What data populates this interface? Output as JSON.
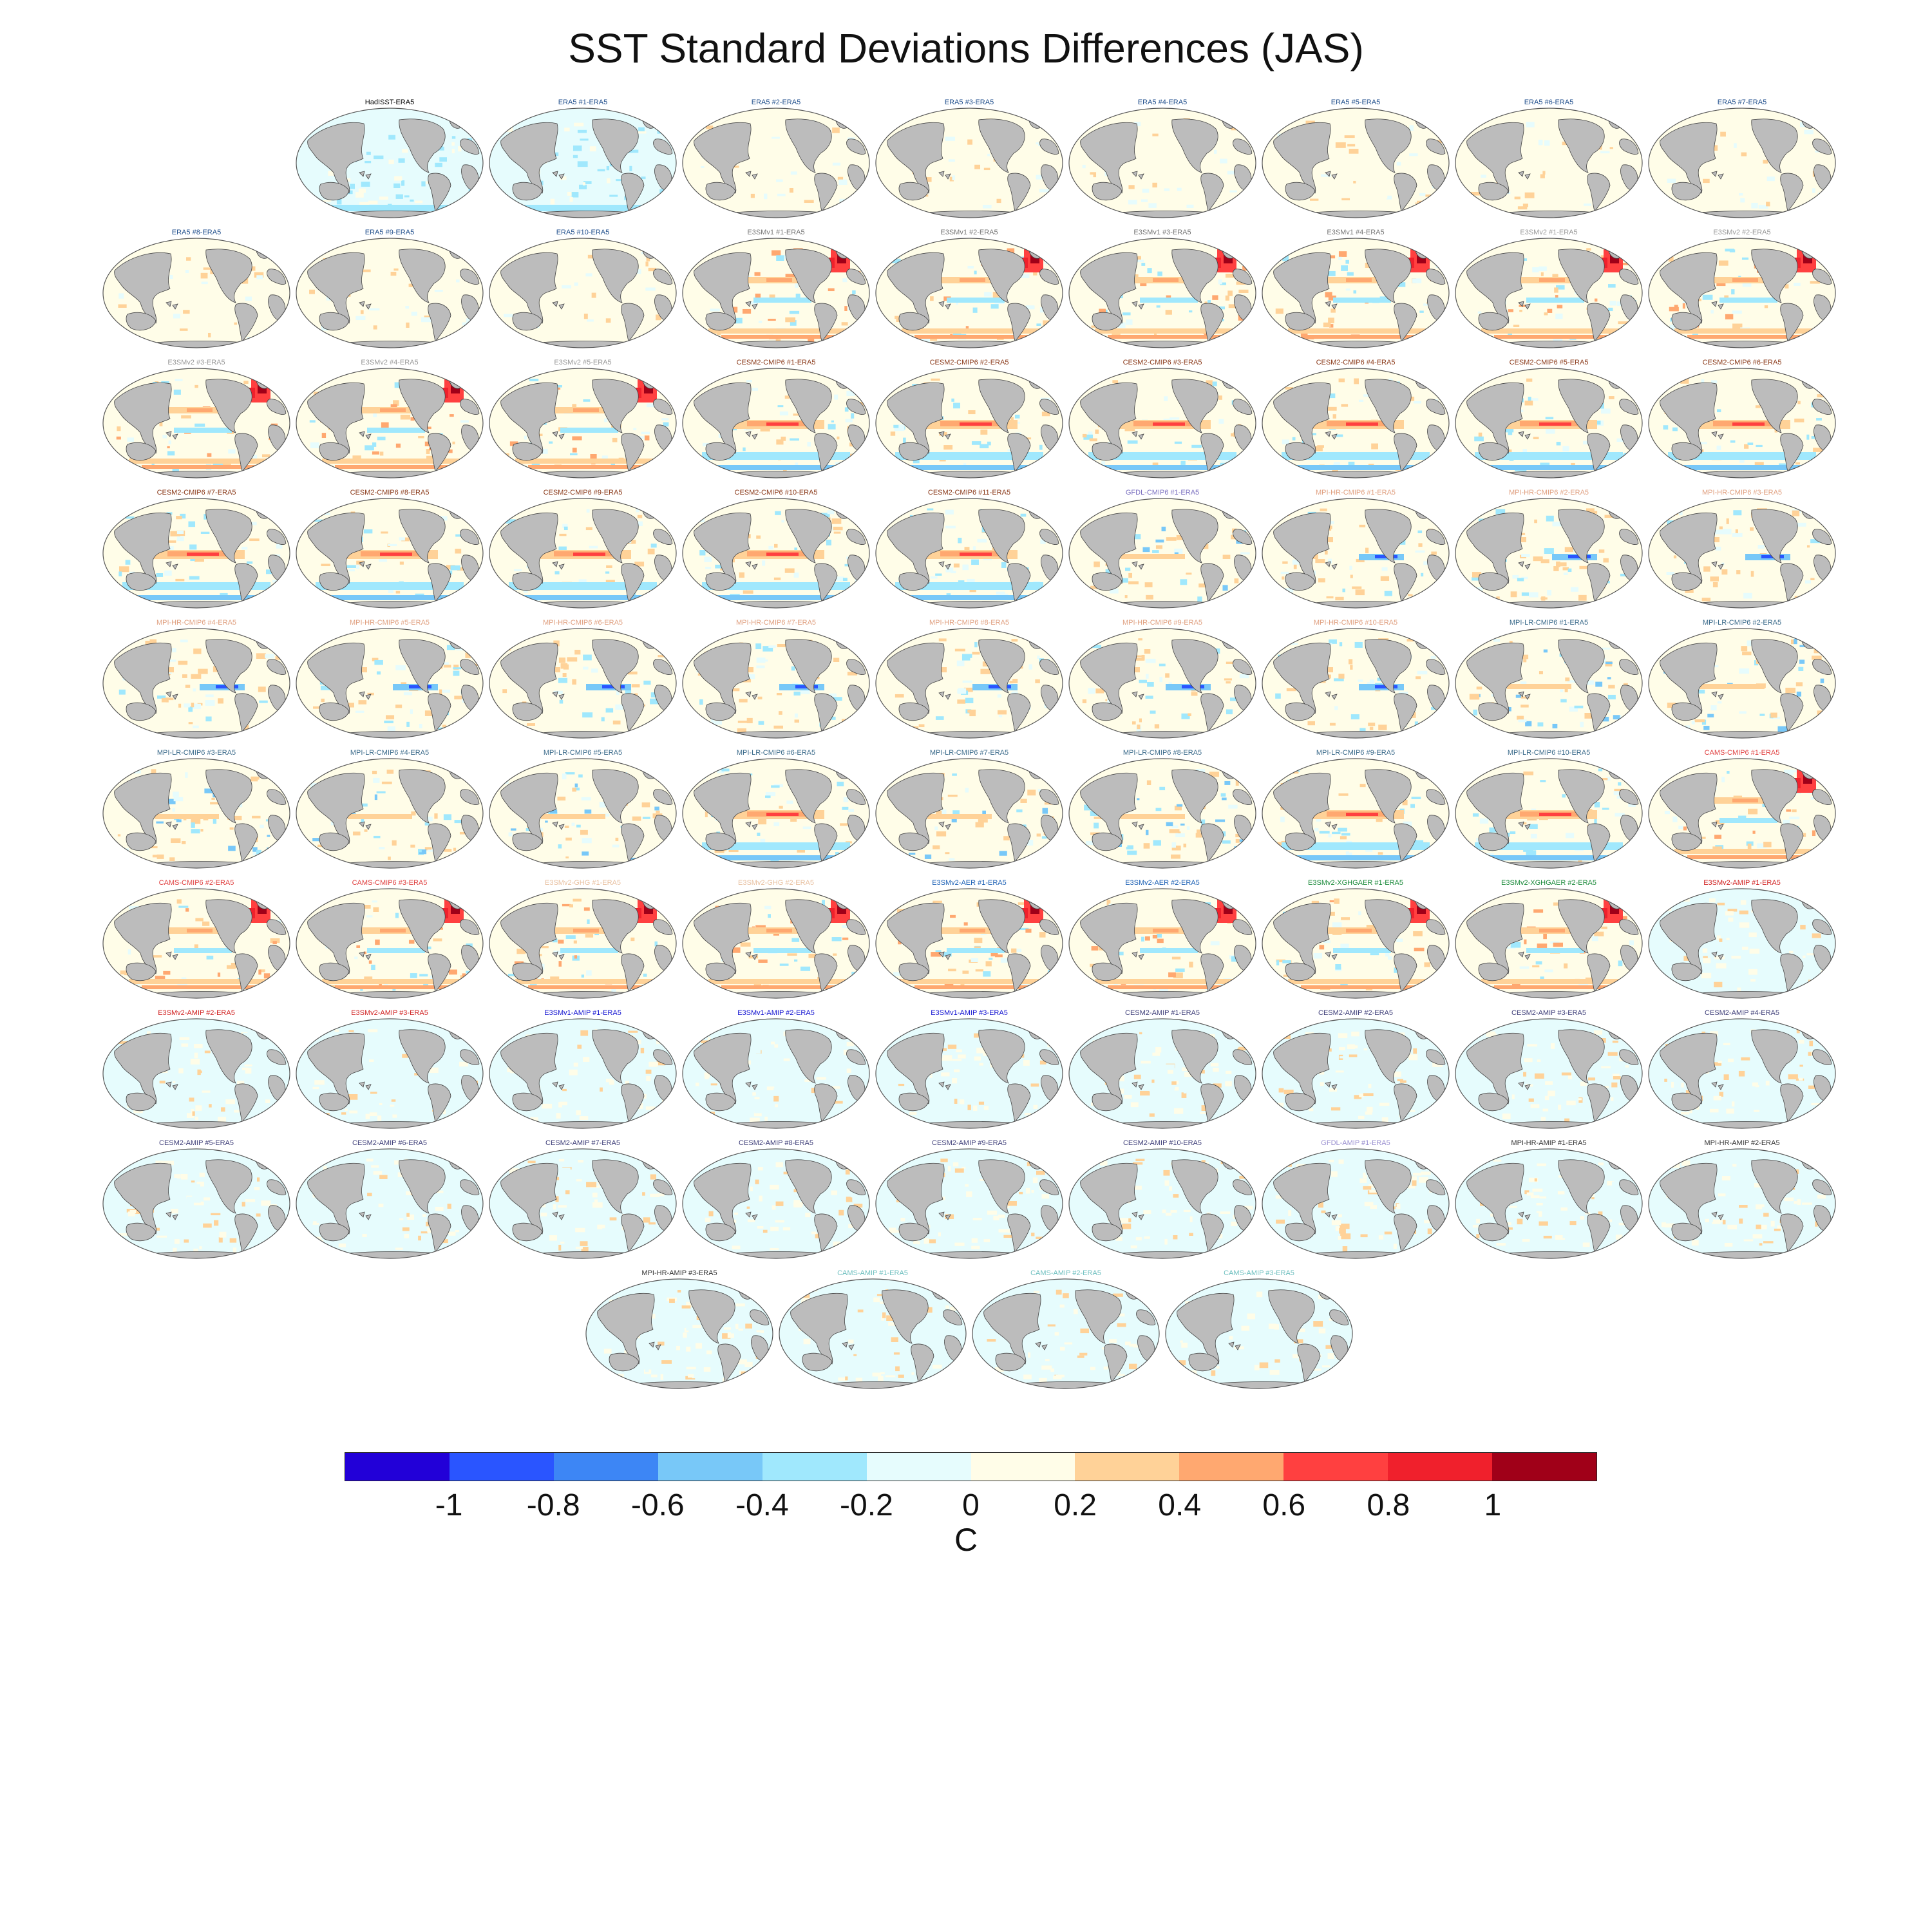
{
  "title": "SST Standard Deviations Differences (JAS)",
  "panel_rows": [
    [
      {
        "label": "HadISST-ERA5",
        "color": "#000000",
        "pattern": "obs"
      },
      {
        "label": "ERA5   #1-ERA5",
        "color": "#1f4e8c",
        "pattern": "obs"
      },
      {
        "label": "ERA5   #2-ERA5",
        "color": "#1f4e8c",
        "pattern": "near"
      },
      {
        "label": "ERA5   #3-ERA5",
        "color": "#1f4e8c",
        "pattern": "near"
      },
      {
        "label": "ERA5   #4-ERA5",
        "color": "#1f4e8c",
        "pattern": "near"
      },
      {
        "label": "ERA5   #5-ERA5",
        "color": "#1f4e8c",
        "pattern": "near"
      },
      {
        "label": "ERA5   #6-ERA5",
        "color": "#1f4e8c",
        "pattern": "near"
      },
      {
        "label": "ERA5   #7-ERA5",
        "color": "#1f4e8c",
        "pattern": "near"
      }
    ],
    [
      {
        "label": "ERA5   #8-ERA5",
        "color": "#1f4e8c",
        "pattern": "near"
      },
      {
        "label": "ERA5   #9-ERA5",
        "color": "#1f4e8c",
        "pattern": "near"
      },
      {
        "label": "ERA5   #10-ERA5",
        "color": "#1f4e8c",
        "pattern": "near"
      },
      {
        "label": "E3SMv1 #1-ERA5",
        "color": "#777777",
        "pattern": "e3sm"
      },
      {
        "label": "E3SMv1 #2-ERA5",
        "color": "#777777",
        "pattern": "e3sm"
      },
      {
        "label": "E3SMv1 #3-ERA5",
        "color": "#777777",
        "pattern": "e3sm"
      },
      {
        "label": "E3SMv1 #4-ERA5",
        "color": "#777777",
        "pattern": "e3sm"
      },
      {
        "label": "E3SMv2 #1-ERA5",
        "color": "#999999",
        "pattern": "e3sm"
      },
      {
        "label": "E3SMv2 #2-ERA5",
        "color": "#999999",
        "pattern": "e3sm"
      }
    ],
    [
      {
        "label": "E3SMv2 #3-ERA5",
        "color": "#999999",
        "pattern": "e3sm"
      },
      {
        "label": "E3SMv2 #4-ERA5",
        "color": "#999999",
        "pattern": "e3sm"
      },
      {
        "label": "E3SMv2 #5-ERA5",
        "color": "#999999",
        "pattern": "e3sm"
      },
      {
        "label": "CESM2-CMIP6 #1-ERA5",
        "color": "#8b3a1a",
        "pattern": "cesm"
      },
      {
        "label": "CESM2-CMIP6 #2-ERA5",
        "color": "#8b3a1a",
        "pattern": "cesm"
      },
      {
        "label": "CESM2-CMIP6 #3-ERA5",
        "color": "#8b3a1a",
        "pattern": "cesm"
      },
      {
        "label": "CESM2-CMIP6 #4-ERA5",
        "color": "#8b3a1a",
        "pattern": "cesm"
      },
      {
        "label": "CESM2-CMIP6 #5-ERA5",
        "color": "#8b3a1a",
        "pattern": "cesm"
      },
      {
        "label": "CESM2-CMIP6 #6-ERA5",
        "color": "#8b3a1a",
        "pattern": "cesm"
      }
    ],
    [
      {
        "label": "CESM2-CMIP6 #7-ERA5",
        "color": "#8b3a1a",
        "pattern": "cesm"
      },
      {
        "label": "CESM2-CMIP6 #8-ERA5",
        "color": "#8b3a1a",
        "pattern": "cesm"
      },
      {
        "label": "CESM2-CMIP6 #9-ERA5",
        "color": "#8b3a1a",
        "pattern": "cesm"
      },
      {
        "label": "CESM2-CMIP6 #10-ERA5",
        "color": "#8b3a1a",
        "pattern": "cesm"
      },
      {
        "label": "CESM2-CMIP6 #11-ERA5",
        "color": "#8b3a1a",
        "pattern": "cesm"
      },
      {
        "label": "GFDL-CMIP6 #1-ERA5",
        "color": "#7a6fc0",
        "pattern": "mix"
      },
      {
        "label": "MPI-HR-CMIP6 #1-ERA5",
        "color": "#e0a080",
        "pattern": "mpi"
      },
      {
        "label": "MPI-HR-CMIP6 #2-ERA5",
        "color": "#e0a080",
        "pattern": "mpi"
      },
      {
        "label": "MPI-HR-CMIP6 #3-ERA5",
        "color": "#e0a080",
        "pattern": "mpi"
      }
    ],
    [
      {
        "label": "MPI-HR-CMIP6 #4-ERA5",
        "color": "#e0a080",
        "pattern": "mpi"
      },
      {
        "label": "MPI-HR-CMIP6 #5-ERA5",
        "color": "#e0a080",
        "pattern": "mpi"
      },
      {
        "label": "MPI-HR-CMIP6 #6-ERA5",
        "color": "#e0a080",
        "pattern": "mpi"
      },
      {
        "label": "MPI-HR-CMIP6 #7-ERA5",
        "color": "#e0a080",
        "pattern": "mpi"
      },
      {
        "label": "MPI-HR-CMIP6 #8-ERA5",
        "color": "#e0a080",
        "pattern": "mpi"
      },
      {
        "label": "MPI-HR-CMIP6 #9-ERA5",
        "color": "#e0a080",
        "pattern": "mpi"
      },
      {
        "label": "MPI-HR-CMIP6 #10-ERA5",
        "color": "#e0a080",
        "pattern": "mpi"
      },
      {
        "label": "MPI-LR-CMIP6 #1-ERA5",
        "color": "#3a6a8a",
        "pattern": "mix"
      },
      {
        "label": "MPI-LR-CMIP6 #2-ERA5",
        "color": "#3a6a8a",
        "pattern": "mix"
      }
    ],
    [
      {
        "label": "MPI-LR-CMIP6 #3-ERA5",
        "color": "#3a6a8a",
        "pattern": "mix"
      },
      {
        "label": "MPI-LR-CMIP6 #4-ERA5",
        "color": "#3a6a8a",
        "pattern": "mix"
      },
      {
        "label": "MPI-LR-CMIP6 #5-ERA5",
        "color": "#3a6a8a",
        "pattern": "mix"
      },
      {
        "label": "MPI-LR-CMIP6 #6-ERA5",
        "color": "#3a6a8a",
        "pattern": "cesm"
      },
      {
        "label": "MPI-LR-CMIP6 #7-ERA5",
        "color": "#3a6a8a",
        "pattern": "mix"
      },
      {
        "label": "MPI-LR-CMIP6 #8-ERA5",
        "color": "#3a6a8a",
        "pattern": "mix"
      },
      {
        "label": "MPI-LR-CMIP6 #9-ERA5",
        "color": "#3a6a8a",
        "pattern": "cesm"
      },
      {
        "label": "MPI-LR-CMIP6 #10-ERA5",
        "color": "#3a6a8a",
        "pattern": "cesm"
      },
      {
        "label": "CAMS-CMIP6 #1-ERA5",
        "color": "#e04040",
        "pattern": "e3sm"
      }
    ],
    [
      {
        "label": "CAMS-CMIP6 #2-ERA5",
        "color": "#e04040",
        "pattern": "e3sm"
      },
      {
        "label": "CAMS-CMIP6 #3-ERA5",
        "color": "#e04040",
        "pattern": "e3sm"
      },
      {
        "label": "E3SMv2-GHG #1-ERA5",
        "color": "#e8c0a0",
        "pattern": "e3sm"
      },
      {
        "label": "E3SMv2-GHG #2-ERA5",
        "color": "#e8c0a0",
        "pattern": "e3sm"
      },
      {
        "label": "E3SMv2-AER #1-ERA5",
        "color": "#1a5fb4",
        "pattern": "e3sm"
      },
      {
        "label": "E3SMv2-AER #2-ERA5",
        "color": "#1a5fb4",
        "pattern": "e3sm"
      },
      {
        "label": "E3SMv2-XGHGAER #1-ERA5",
        "color": "#1a8a3a",
        "pattern": "e3sm"
      },
      {
        "label": "E3SMv2-XGHGAER #2-ERA5",
        "color": "#1a8a3a",
        "pattern": "e3sm"
      },
      {
        "label": "E3SMv2-AMIP #1-ERA5",
        "color": "#d02020",
        "pattern": "amip"
      }
    ],
    [
      {
        "label": "E3SMv2-AMIP #2-ERA5",
        "color": "#d02020",
        "pattern": "amip"
      },
      {
        "label": "E3SMv2-AMIP #3-ERA5",
        "color": "#d02020",
        "pattern": "amip"
      },
      {
        "label": "E3SMv1-AMIP #1-ERA5",
        "color": "#1010d0",
        "pattern": "amip"
      },
      {
        "label": "E3SMv1-AMIP #2-ERA5",
        "color": "#1010d0",
        "pattern": "amip"
      },
      {
        "label": "E3SMv1-AMIP #3-ERA5",
        "color": "#1010d0",
        "pattern": "amip"
      },
      {
        "label": "CESM2-AMIP #1-ERA5",
        "color": "#40407a",
        "pattern": "amip"
      },
      {
        "label": "CESM2-AMIP #2-ERA5",
        "color": "#40407a",
        "pattern": "amip"
      },
      {
        "label": "CESM2-AMIP #3-ERA5",
        "color": "#40407a",
        "pattern": "amip"
      },
      {
        "label": "CESM2-AMIP #4-ERA5",
        "color": "#40407a",
        "pattern": "amip"
      }
    ],
    [
      {
        "label": "CESM2-AMIP #5-ERA5",
        "color": "#40407a",
        "pattern": "amip"
      },
      {
        "label": "CESM2-AMIP #6-ERA5",
        "color": "#40407a",
        "pattern": "amip"
      },
      {
        "label": "CESM2-AMIP #7-ERA5",
        "color": "#40407a",
        "pattern": "amip"
      },
      {
        "label": "CESM2-AMIP #8-ERA5",
        "color": "#40407a",
        "pattern": "amip"
      },
      {
        "label": "CESM2-AMIP #9-ERA5",
        "color": "#40407a",
        "pattern": "amip"
      },
      {
        "label": "CESM2-AMIP #10-ERA5",
        "color": "#40407a",
        "pattern": "amip"
      },
      {
        "label": "GFDL-AMIP #1-ERA5",
        "color": "#9a90d0",
        "pattern": "amip"
      },
      {
        "label": "MPI-HR-AMIP #1-ERA5",
        "color": "#333333",
        "pattern": "amip"
      },
      {
        "label": "MPI-HR-AMIP #2-ERA5",
        "color": "#333333",
        "pattern": "amip"
      }
    ],
    [
      {
        "label": "MPI-HR-AMIP #3-ERA5",
        "color": "#333333",
        "pattern": "amip"
      },
      {
        "label": "CAMS-AMIP #1-ERA5",
        "color": "#70c0c0",
        "pattern": "amip"
      },
      {
        "label": "CAMS-AMIP #2-ERA5",
        "color": "#70c0c0",
        "pattern": "amip"
      },
      {
        "label": "CAMS-AMIP #3-ERA5",
        "color": "#70c0c0",
        "pattern": "amip"
      }
    ]
  ],
  "colorbar": {
    "colors": [
      "#2200d8",
      "#2a55ff",
      "#3d86f5",
      "#78c8f8",
      "#a0e8fd",
      "#e6fcfd",
      "#fffde8",
      "#ffd298",
      "#ffa870",
      "#ff4040",
      "#f0202c",
      "#a00018"
    ],
    "ticks": [
      "-1",
      "-0.8",
      "-0.6",
      "-0.4",
      "-0.2",
      "0",
      "0.2",
      "0.4",
      "0.6",
      "0.8",
      "1"
    ],
    "unit": "C"
  },
  "palette": {
    "land": "#bcbcbc",
    "border": "#555555"
  }
}
